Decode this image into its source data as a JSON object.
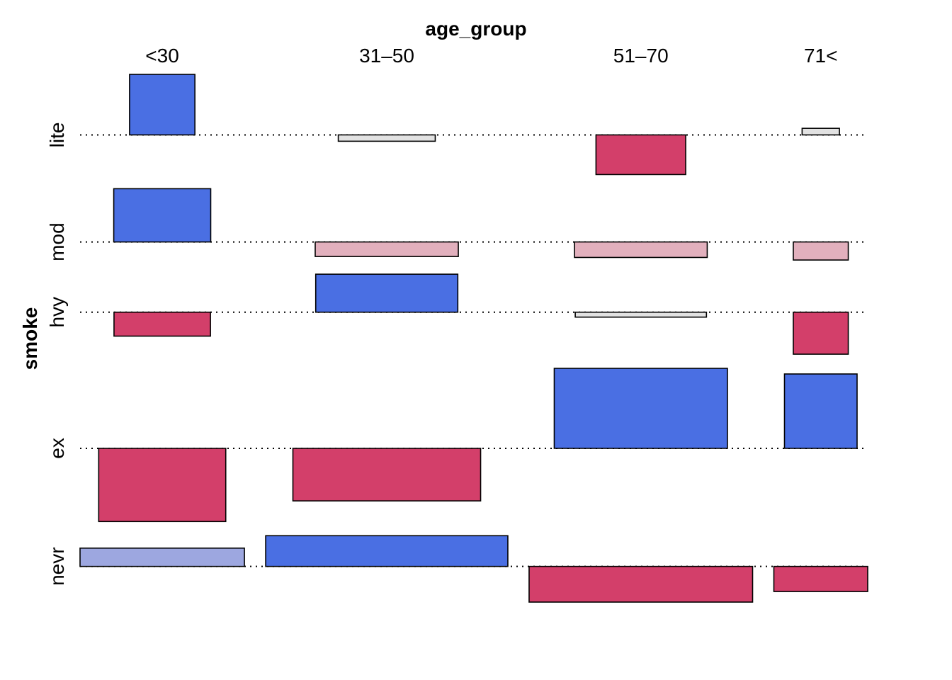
{
  "chart_data": {
    "type": "association",
    "x_variable": "age_group",
    "y_variable": "smoke",
    "columns": [
      "<30",
      "31–50",
      "51–70",
      "71<"
    ],
    "rows": [
      "lite",
      "mod",
      "hvy",
      "ex",
      "nevr"
    ],
    "expected_sqrt": [
      [
        1.26,
        1.87,
        1.73,
        0.72
      ],
      [
        1.87,
        2.76,
        2.56,
        1.06
      ],
      [
        1.86,
        2.74,
        2.53,
        1.06
      ],
      [
        2.45,
        3.62,
        3.34,
        1.4
      ],
      [
        3.17,
        4.67,
        4.31,
        1.81
      ]
    ],
    "pearson_residuals": [
      [
        2.58,
        -0.27,
        -1.69,
        0.28
      ],
      [
        2.27,
        -0.62,
        -0.66,
        -0.77
      ],
      [
        -1.02,
        1.62,
        -0.21,
        -1.79
      ],
      [
        -3.12,
        -2.24,
        3.41,
        3.17
      ],
      [
        0.78,
        1.31,
        -1.52,
        -1.07
      ]
    ],
    "colors": {
      "positive_strong": "#4a6fe3",
      "positive_weak": "#9da7e0",
      "negative_strong": "#d33f6a",
      "negative_weak": "#e2b0bd",
      "neutral": "#e2e2e2"
    },
    "thresholds": [
      0.5,
      1
    ]
  }
}
